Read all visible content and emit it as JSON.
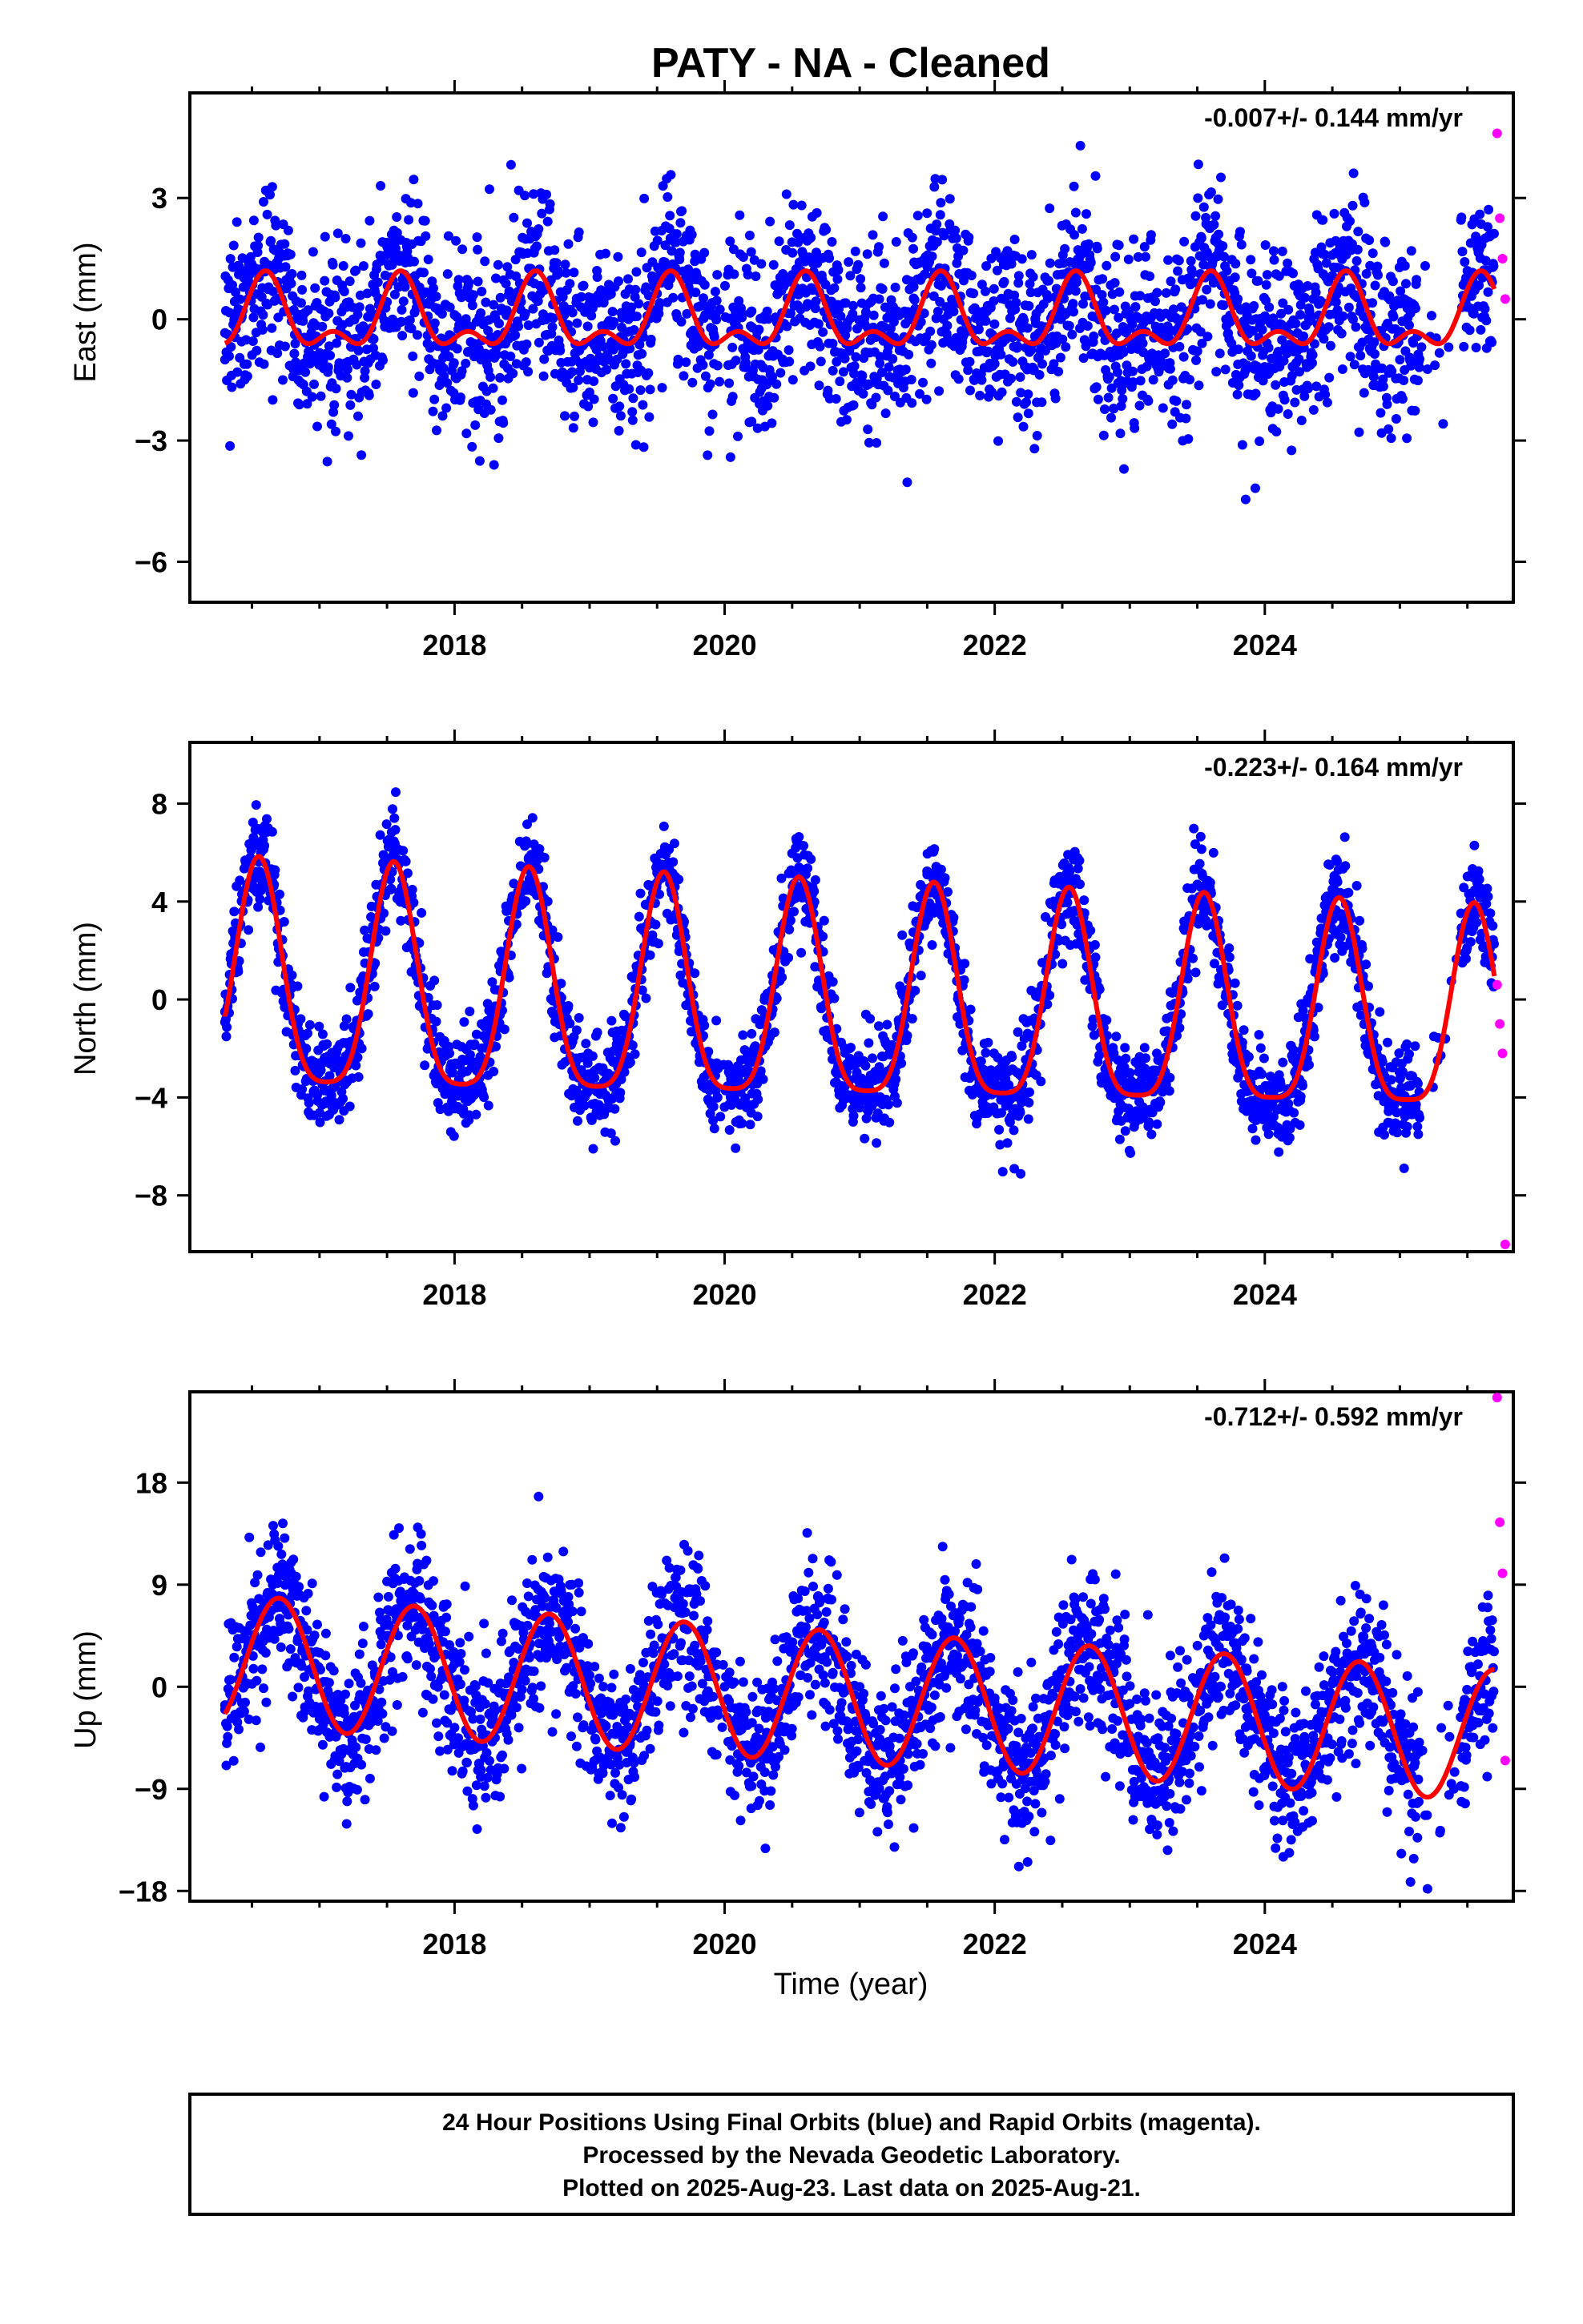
{
  "title": "PATY  - NA - Cleaned",
  "colors": {
    "final": "#0000ff",
    "rapid": "#ff00ff",
    "model": "#ff0000",
    "frame": "#000000"
  },
  "chart_data": [
    {
      "type": "scatter",
      "ylabel": "East (mm)",
      "rate_text": "-0.007+/- 0.144 mm/yr",
      "xlim": [
        2016.04,
        2025.84
      ],
      "ylim": [
        -7.0,
        5.6
      ],
      "xticks": [
        2018,
        2020,
        2022,
        2024
      ],
      "xtick_labels": [
        "2018",
        "2020",
        "2022",
        "2024"
      ],
      "yticks": [
        3,
        0,
        -3,
        -6
      ],
      "ytick_labels": [
        "3",
        "0",
        "−3",
        "−6"
      ],
      "series": [
        {
          "kind": "final",
          "x": [
            2016.3,
            2016.6,
            2016.9,
            2017.2,
            2017.5,
            2017.8,
            2018.1,
            2018.4,
            2018.7,
            2019.0,
            2019.3,
            2019.6,
            2019.9,
            2020.2,
            2020.5,
            2020.8,
            2021.1,
            2021.4,
            2021.7,
            2022.0,
            2022.3,
            2022.6,
            2022.9,
            2023.2,
            2023.5,
            2023.8,
            2024.1,
            2024.4,
            2024.7,
            2025.0,
            2025.5
          ],
          "y": [
            -1.0,
            1.2,
            -0.5,
            0.3,
            1.8,
            -0.4,
            -0.8,
            0.6,
            0.9,
            -1.2,
            -0.3,
            1.0,
            -0.7,
            0.2,
            1.1,
            -0.6,
            -0.2,
            0.8,
            0.4,
            -1.1,
            0.0,
            0.7,
            -0.9,
            -0.3,
            0.9,
            0.5,
            -0.8,
            0.1,
            0.6,
            -1.0,
            1.2
          ]
        },
        {
          "kind": "rapid",
          "x": [
            2025.72,
            2025.74,
            2025.76,
            2025.78
          ],
          "y": [
            4.6,
            2.5,
            1.5,
            0.5
          ]
        },
        {
          "kind": "model",
          "x": [
            2016.3,
            2025.7
          ],
          "y": [
            0,
            0
          ]
        }
      ]
    },
    {
      "type": "scatter",
      "ylabel": "North (mm)",
      "rate_text": "-0.223+/- 0.164 mm/yr",
      "xlim": [
        2016.04,
        2025.84
      ],
      "ylim": [
        -10.3,
        10.5
      ],
      "xticks": [
        2018,
        2020,
        2022,
        2024
      ],
      "xtick_labels": [
        "2018",
        "2020",
        "2022",
        "2024"
      ],
      "yticks": [
        8,
        4,
        0,
        -4,
        -8
      ],
      "ytick_labels": [
        "8",
        "4",
        "0",
        "−4",
        "−8"
      ],
      "series": [
        {
          "kind": "final",
          "x": [
            2016.3,
            2016.55,
            2016.9,
            2017.2,
            2017.55,
            2017.9,
            2018.2,
            2018.55,
            2018.9,
            2019.2,
            2019.5,
            2019.9,
            2020.2,
            2020.55,
            2020.9,
            2021.2,
            2021.5,
            2021.9,
            2022.2,
            2022.55,
            2022.9,
            2023.2,
            2023.5,
            2023.9,
            2024.2,
            2024.5,
            2024.9,
            2025.5
          ],
          "y": [
            -0.5,
            6.3,
            -2.0,
            -0.8,
            6.0,
            -2.2,
            -1.0,
            5.8,
            -2.4,
            -1.3,
            5.6,
            -2.6,
            -1.4,
            5.4,
            -2.9,
            -1.8,
            5.1,
            -3.2,
            -1.9,
            5.0,
            -3.3,
            -2.2,
            4.7,
            -3.6,
            -2.3,
            4.5,
            -3.7,
            3.0
          ]
        },
        {
          "kind": "rapid",
          "x": [
            2025.72,
            2025.74,
            2025.76,
            2025.78
          ],
          "y": [
            0.6,
            -1.0,
            -2.2,
            -10.0
          ]
        },
        {
          "kind": "model",
          "x": [
            2016.3,
            2025.7
          ],
          "y": [
            0,
            0
          ]
        }
      ]
    },
    {
      "type": "scatter",
      "ylabel": "Up (mm)",
      "xlabel": "Time (year)",
      "rate_text": "-0.712+/- 0.592 mm/yr",
      "xlim": [
        2016.04,
        2025.84
      ],
      "ylim": [
        -18.9,
        26.0
      ],
      "xticks": [
        2018,
        2020,
        2022,
        2024
      ],
      "xtick_labels": [
        "2018",
        "2020",
        "2022",
        "2024"
      ],
      "yticks": [
        18,
        9,
        0,
        -9,
        -18
      ],
      "ytick_labels": [
        "18",
        "9",
        "0",
        "−9",
        "−18"
      ],
      "series": [
        {
          "kind": "final",
          "x": [
            2016.3,
            2016.7,
            2017.0,
            2017.3,
            2017.7,
            2018.0,
            2018.3,
            2018.7,
            2019.0,
            2019.3,
            2019.7,
            2020.0,
            2020.3,
            2020.7,
            2021.0,
            2021.3,
            2021.7,
            2022.0,
            2022.3,
            2022.7,
            2023.0,
            2023.3,
            2023.7,
            2024.0,
            2024.3,
            2024.7,
            2025.0,
            2025.4
          ],
          "y": [
            -2.0,
            8.0,
            3.0,
            -3.5,
            7.0,
            2.0,
            -4.5,
            6.0,
            1.0,
            -5.0,
            5.5,
            0.0,
            -5.5,
            5.0,
            0.0,
            -6.5,
            4.0,
            -1.0,
            -7.0,
            3.5,
            -1.5,
            -7.5,
            3.0,
            -2.5,
            -8.5,
            2.0,
            -3.0,
            -9.0
          ]
        },
        {
          "kind": "rapid",
          "x": [
            2025.72,
            2025.74,
            2025.76,
            2025.78
          ],
          "y": [
            25.5,
            14.5,
            10.0,
            -6.5
          ]
        },
        {
          "kind": "model",
          "x": [
            2016.3,
            2025.7
          ],
          "y": [
            0,
            0
          ]
        }
      ]
    }
  ],
  "footer": {
    "line1": "24 Hour Positions Using Final Orbits (blue) and Rapid Orbits (magenta).",
    "line2": "Processed by the Nevada Geodetic Laboratory.",
    "line3": "Plotted on 2025-Aug-23. Last data on 2025-Aug-21."
  }
}
